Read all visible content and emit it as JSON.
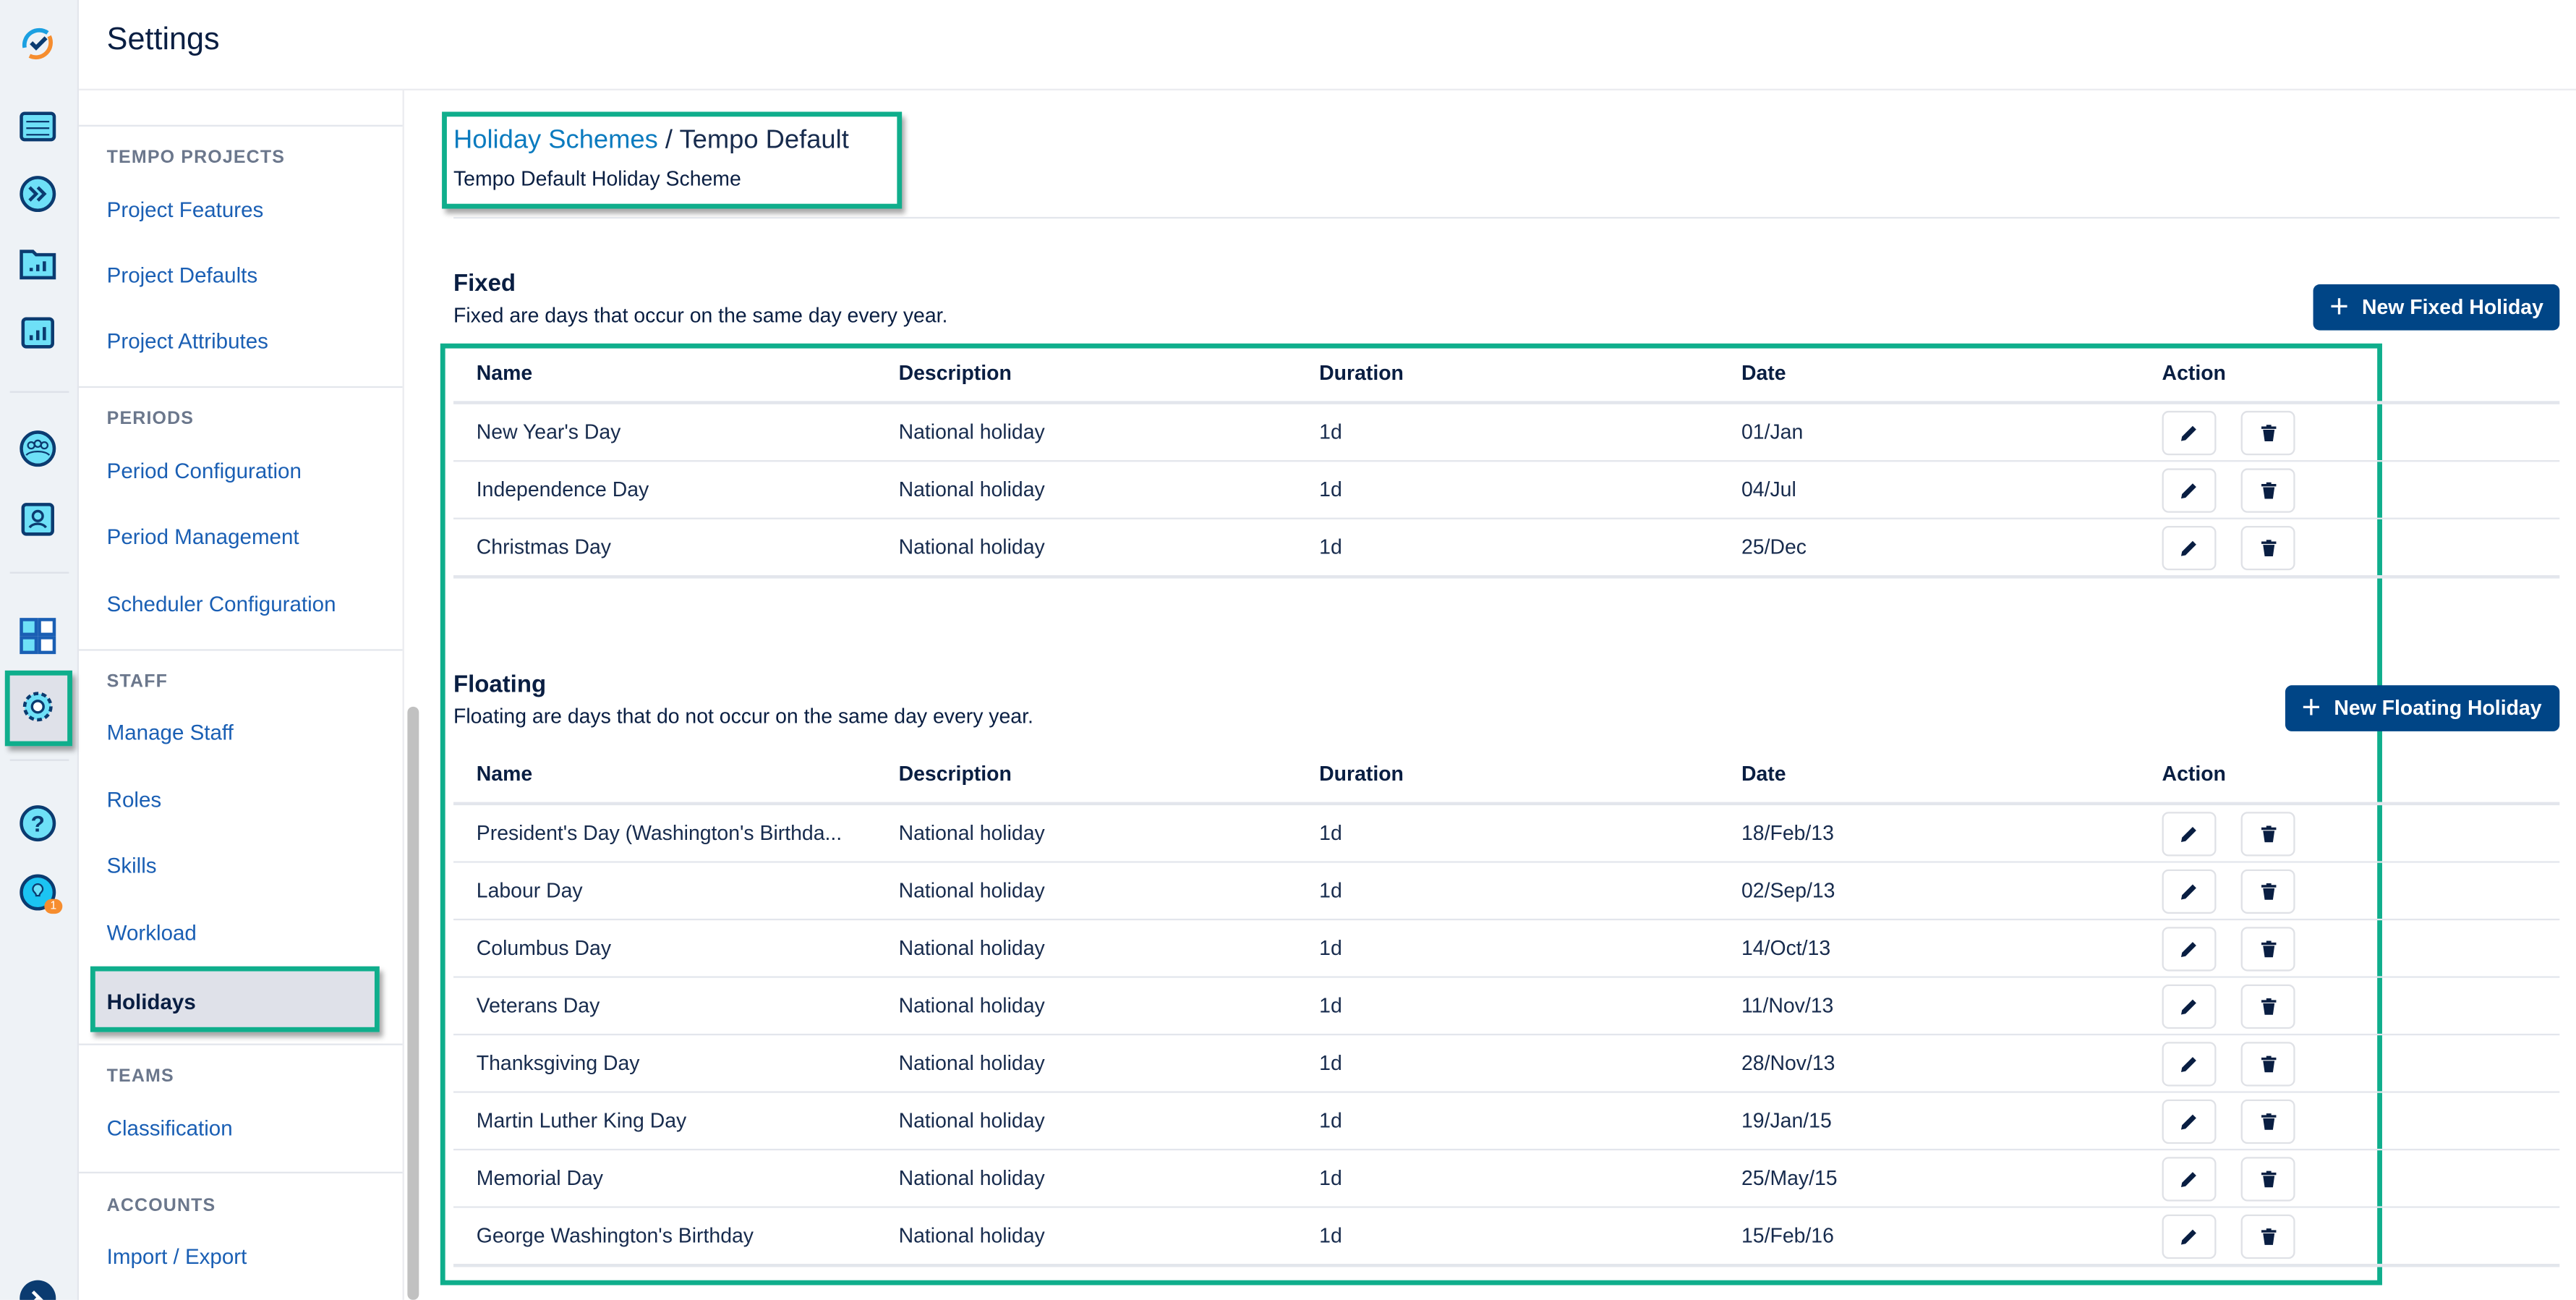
{
  "app": {
    "title": "Settings"
  },
  "rail": {
    "icons": [
      "tempo-logo-icon",
      "calendar-icon",
      "fast-forward-icon",
      "folder-chart-icon",
      "bar-chart-icon",
      "team-icon",
      "user-card-icon",
      "grid-icon",
      "gear-icon",
      "help-icon",
      "lightbulb-icon",
      "pin-icon"
    ],
    "notification_badge": "1"
  },
  "sidebar": {
    "sections": [
      {
        "heading": "TEMPO PROJECTS",
        "items": [
          "Project Features",
          "Project Defaults",
          "Project Attributes"
        ]
      },
      {
        "heading": "PERIODS",
        "items": [
          "Period Configuration",
          "Period Management",
          "Scheduler Configuration"
        ]
      },
      {
        "heading": "STAFF",
        "items": [
          "Manage Staff",
          "Roles",
          "Skills",
          "Workload",
          "Holidays"
        ]
      },
      {
        "heading": "TEAMS",
        "items": [
          "Classification"
        ]
      },
      {
        "heading": "ACCOUNTS",
        "items": [
          "Import / Export"
        ]
      }
    ],
    "active_item": "Holidays"
  },
  "breadcrumb": {
    "parent": "Holiday Schemes",
    "separator": " / ",
    "current": "Tempo Default",
    "subtitle": "Tempo Default Holiday Scheme"
  },
  "columns": [
    "Name",
    "Description",
    "Duration",
    "Date",
    "Action"
  ],
  "fixed": {
    "title": "Fixed",
    "description": "Fixed are days that occur on the same day every year.",
    "button": "New Fixed Holiday",
    "rows": [
      [
        "New Year's Day",
        "National holiday",
        "1d",
        "01/Jan"
      ],
      [
        "Independence Day",
        "National holiday",
        "1d",
        "04/Jul"
      ],
      [
        "Christmas Day",
        "National holiday",
        "1d",
        "25/Dec"
      ]
    ]
  },
  "floating": {
    "title": "Floating",
    "description": "Floating are days that do not occur on the same day every year.",
    "button": "New Floating Holiday",
    "rows": [
      [
        "President's Day (Washington's Birthda...",
        "National holiday",
        "1d",
        "18/Feb/13"
      ],
      [
        "Labour Day",
        "National holiday",
        "1d",
        "02/Sep/13"
      ],
      [
        "Columbus Day",
        "National holiday",
        "1d",
        "14/Oct/13"
      ],
      [
        "Veterans Day",
        "National holiday",
        "1d",
        "11/Nov/13"
      ],
      [
        "Thanksgiving Day",
        "National holiday",
        "1d",
        "28/Nov/13"
      ],
      [
        "Martin Luther King Day",
        "National holiday",
        "1d",
        "19/Jan/15"
      ],
      [
        "Memorial Day",
        "National holiday",
        "1d",
        "25/May/15"
      ],
      [
        "George Washington's Birthday",
        "National holiday",
        "1d",
        "15/Feb/16"
      ]
    ]
  },
  "colors": {
    "primary": "#004586",
    "link": "#1a5fb4",
    "highlight": "#0fae8c"
  }
}
